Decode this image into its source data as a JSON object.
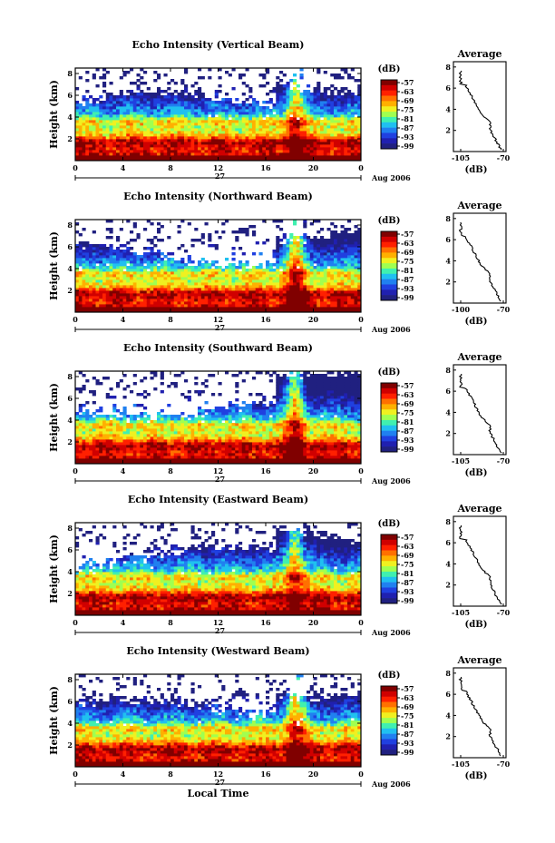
{
  "x_axis_label": "Local Time",
  "chart_data": [
    {
      "type": "heatmap",
      "title": "Echo Intensity (Vertical Beam)",
      "ylabel": "Height (km)",
      "x_ticks": [
        "0",
        "4",
        "8",
        "12",
        "16",
        "20",
        "0"
      ],
      "y_ticks": [
        "2",
        "4",
        "6",
        "8"
      ],
      "date_label": "27",
      "month_label": "Aug 2006",
      "colorbar_unit": "(dB)",
      "colorbar_ticks": [
        "-57",
        "-63",
        "-69",
        "-75",
        "-81",
        "-87",
        "-93",
        "-99"
      ],
      "avg_title": "Average",
      "avg_xlabel": "(dB)",
      "avg_xticks": [
        "-105",
        "-70"
      ],
      "avg_yticks": [
        "2",
        "4",
        "6",
        "8"
      ]
    },
    {
      "type": "heatmap",
      "title": "Echo Intensity (Northward Beam)",
      "ylabel": "Height (km)",
      "x_ticks": [
        "0",
        "4",
        "8",
        "12",
        "16",
        "20",
        "0"
      ],
      "y_ticks": [
        "2",
        "4",
        "6",
        "8"
      ],
      "date_label": "27",
      "month_label": "Aug 2006",
      "colorbar_unit": "(dB)",
      "colorbar_ticks": [
        "-57",
        "-63",
        "-69",
        "-75",
        "-81",
        "-87",
        "-93",
        "-99"
      ],
      "avg_title": "Average",
      "avg_xlabel": "(dB)",
      "avg_xticks": [
        "-100",
        "-70"
      ],
      "avg_yticks": [
        "2",
        "4",
        "6",
        "8"
      ]
    },
    {
      "type": "heatmap",
      "title": "Echo Intensity (Southward Beam)",
      "ylabel": "Height (km)",
      "x_ticks": [
        "0",
        "4",
        "8",
        "12",
        "16",
        "20",
        "0"
      ],
      "y_ticks": [
        "2",
        "4",
        "6",
        "8"
      ],
      "date_label": "27",
      "month_label": "Aug 2006",
      "colorbar_unit": "(dB)",
      "colorbar_ticks": [
        "-57",
        "-63",
        "-69",
        "-75",
        "-81",
        "-87",
        "-93",
        "-99"
      ],
      "avg_title": "Average",
      "avg_xlabel": "(dB)",
      "avg_xticks": [
        "-105",
        "-70"
      ],
      "avg_yticks": [
        "2",
        "4",
        "6",
        "8"
      ]
    },
    {
      "type": "heatmap",
      "title": "Echo Intensity (Eastward Beam)",
      "ylabel": "Height (km)",
      "x_ticks": [
        "0",
        "4",
        "8",
        "12",
        "16",
        "20",
        "0"
      ],
      "y_ticks": [
        "2",
        "4",
        "6",
        "8"
      ],
      "date_label": "27",
      "month_label": "Aug 2006",
      "colorbar_unit": "(dB)",
      "colorbar_ticks": [
        "-57",
        "-63",
        "-69",
        "-75",
        "-81",
        "-87",
        "-93",
        "-99"
      ],
      "avg_title": "Average",
      "avg_xlabel": "(dB)",
      "avg_xticks": [
        "-105",
        "-70"
      ],
      "avg_yticks": [
        "2",
        "4",
        "6",
        "8"
      ]
    },
    {
      "type": "heatmap",
      "title": "Echo Intensity (Westward Beam)",
      "ylabel": "Height (km)",
      "x_ticks": [
        "0",
        "4",
        "8",
        "12",
        "16",
        "20",
        "0"
      ],
      "y_ticks": [
        "2",
        "4",
        "6",
        "8"
      ],
      "date_label": "27",
      "month_label": "Aug 2006",
      "colorbar_unit": "(dB)",
      "colorbar_ticks": [
        "-57",
        "-63",
        "-69",
        "-75",
        "-81",
        "-87",
        "-93",
        "-99"
      ],
      "avg_title": "Average",
      "avg_xlabel": "(dB)",
      "avg_xticks": [
        "-105",
        "-70"
      ],
      "avg_yticks": [
        "2",
        "4",
        "6",
        "8"
      ]
    }
  ],
  "colormap": [
    "#800000",
    "#d00000",
    "#ff2000",
    "#ff7000",
    "#ffb000",
    "#f0f020",
    "#a0ff50",
    "#40f0b0",
    "#20c0f0",
    "#2080f0",
    "#2040e0",
    "#2020b0",
    "#202080"
  ]
}
